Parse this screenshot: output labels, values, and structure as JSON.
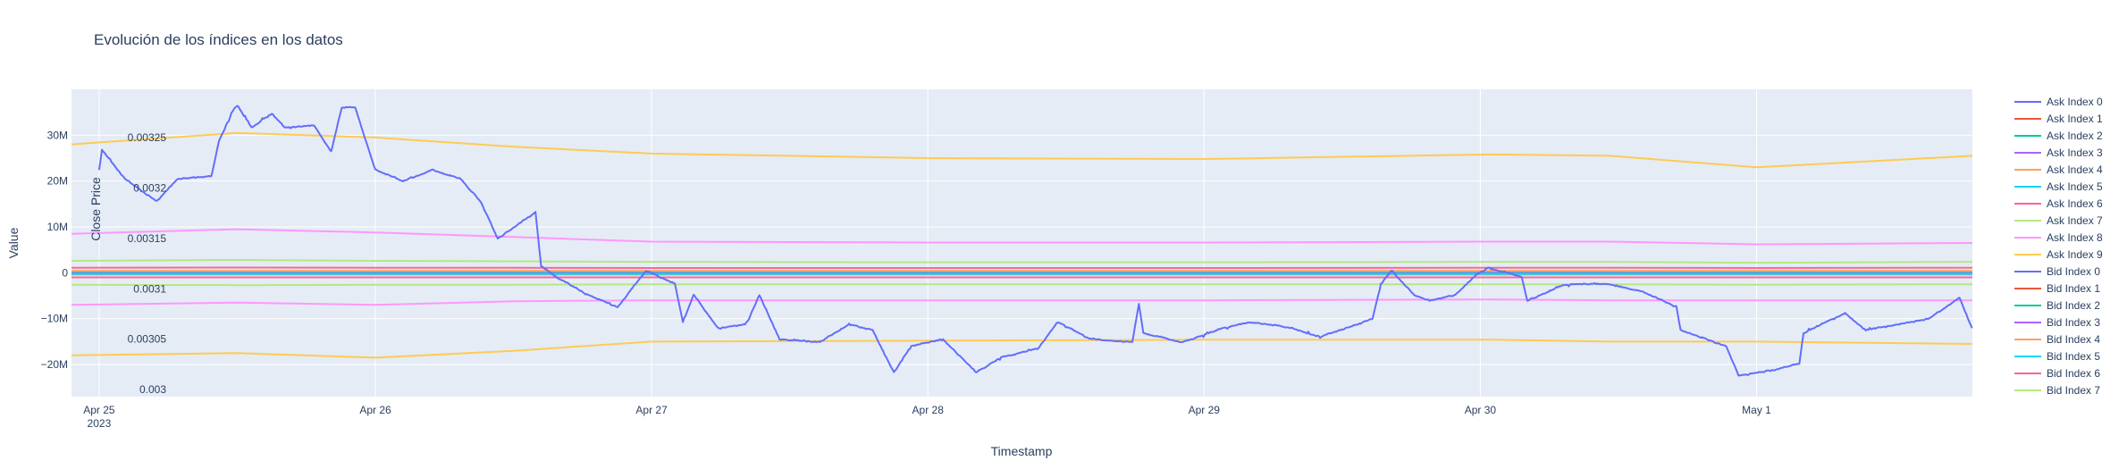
{
  "chart_data": {
    "type": "line",
    "title": "Evolución de los índices en los datos",
    "xlabel": "Timestamp",
    "ylabel": "Value",
    "y2label": "Close Price",
    "grid": true,
    "legend_position": "right",
    "background": "#e5ecf6",
    "xlim": [
      "2023-04-24 21:36",
      "2023-05-01 18:45"
    ],
    "ylim": [
      -27000000,
      40000000
    ],
    "y2lim": [
      0.002993,
      0.003298
    ],
    "x_ticks": [
      {
        "value": "2023-04-25 00:00",
        "label": "Apr 25",
        "sublabel": "2023"
      },
      {
        "value": "2023-04-26 00:00",
        "label": "Apr 26"
      },
      {
        "value": "2023-04-27 00:00",
        "label": "Apr 27"
      },
      {
        "value": "2023-04-28 00:00",
        "label": "Apr 28"
      },
      {
        "value": "2023-04-29 00:00",
        "label": "Apr 29"
      },
      {
        "value": "2023-04-30 00:00",
        "label": "Apr 30"
      },
      {
        "value": "2023-05-01 00:00",
        "label": "May 1"
      }
    ],
    "y_ticks": [
      {
        "value": 30000000,
        "label": "30M"
      },
      {
        "value": 20000000,
        "label": "20M"
      },
      {
        "value": 10000000,
        "label": "10M"
      },
      {
        "value": 0,
        "label": "0"
      },
      {
        "value": -10000000,
        "label": "−10M"
      },
      {
        "value": -20000000,
        "label": "−20M"
      }
    ],
    "y2_ticks": [
      {
        "value": 0.00325,
        "label": "0.00325"
      },
      {
        "value": 0.0032,
        "label": "0.0032"
      },
      {
        "value": 0.00315,
        "label": "0.00315"
      },
      {
        "value": 0.0031,
        "label": "0.0031"
      },
      {
        "value": 0.00305,
        "label": "0.00305"
      },
      {
        "value": 0.003,
        "label": "0.003"
      }
    ],
    "index_x": [
      "2023-04-24 21:36",
      "2023-04-25 12:00",
      "2023-04-26 00:00",
      "2023-04-26 12:00",
      "2023-04-27 00:00",
      "2023-04-28 00:00",
      "2023-04-29 00:00",
      "2023-04-30 01:00",
      "2023-04-30 11:15",
      "2023-05-01 00:00",
      "2023-05-01 18:45"
    ],
    "series": [
      {
        "name": "Ask Index 0",
        "color": "#636efa",
        "values": [
          100000,
          100000,
          100000,
          100000,
          100000,
          100000,
          100000,
          100000,
          100000,
          100000,
          100000
        ]
      },
      {
        "name": "Ask Index 1",
        "color": "#EF553B",
        "values": [
          300000,
          300000,
          300000,
          300000,
          300000,
          300000,
          300000,
          300000,
          300000,
          300000,
          300000
        ]
      },
      {
        "name": "Ask Index 2",
        "color": "#00cc96",
        "values": [
          150000,
          150000,
          150000,
          150000,
          150000,
          150000,
          150000,
          150000,
          150000,
          150000,
          150000
        ]
      },
      {
        "name": "Ask Index 3",
        "color": "#ab63fa",
        "values": [
          200000,
          200000,
          200000,
          200000,
          200000,
          200000,
          200000,
          200000,
          200000,
          200000,
          200000
        ]
      },
      {
        "name": "Ask Index 4",
        "color": "#FFA15A",
        "values": [
          400000,
          400000,
          400000,
          400000,
          400000,
          400000,
          400000,
          400000,
          400000,
          400000,
          400000
        ]
      },
      {
        "name": "Ask Index 5",
        "color": "#19d3f3",
        "values": [
          0,
          0,
          0,
          0,
          0,
          0,
          0,
          0,
          0,
          0,
          0
        ]
      },
      {
        "name": "Ask Index 6",
        "color": "#FF6692",
        "values": [
          1100000,
          1150000,
          1100000,
          1100000,
          1050000,
          1050000,
          1050000,
          1100000,
          1100000,
          1050000,
          1100000
        ]
      },
      {
        "name": "Ask Index 7",
        "color": "#B6E880",
        "values": [
          2600000,
          2800000,
          2600000,
          2500000,
          2400000,
          2300000,
          2300000,
          2400000,
          2400000,
          2200000,
          2400000
        ]
      },
      {
        "name": "Ask Index 8",
        "color": "#FF97FF",
        "values": [
          8500000,
          9500000,
          8800000,
          7800000,
          6800000,
          6600000,
          6600000,
          6800000,
          6800000,
          6200000,
          6500000
        ]
      },
      {
        "name": "Ask Index 9",
        "color": "#FECB52",
        "values": [
          28000000,
          30500000,
          29500000,
          27500000,
          26000000,
          25000000,
          24800000,
          25800000,
          25500000,
          23000000,
          25500000
        ]
      },
      {
        "name": "Bid Index 0",
        "color": "#636efa",
        "values": [
          -100000,
          -100000,
          -100000,
          -100000,
          -100000,
          -100000,
          -100000,
          -100000,
          -100000,
          -100000,
          -100000
        ]
      },
      {
        "name": "Bid Index 1",
        "color": "#EF553B",
        "values": [
          -300000,
          -300000,
          -300000,
          -300000,
          -300000,
          -300000,
          -300000,
          -300000,
          -300000,
          -300000,
          -300000
        ]
      },
      {
        "name": "Bid Index 2",
        "color": "#00cc96",
        "values": [
          -150000,
          -150000,
          -150000,
          -150000,
          -150000,
          -150000,
          -150000,
          -150000,
          -150000,
          -150000,
          -150000
        ]
      },
      {
        "name": "Bid Index 3",
        "color": "#ab63fa",
        "values": [
          -200000,
          -200000,
          -200000,
          -200000,
          -200000,
          -200000,
          -200000,
          -200000,
          -200000,
          -200000,
          -200000
        ]
      },
      {
        "name": "Bid Index 4",
        "color": "#FFA15A",
        "values": [
          -400000,
          -400000,
          -400000,
          -400000,
          -400000,
          -400000,
          -400000,
          -400000,
          -400000,
          -400000,
          -400000
        ]
      },
      {
        "name": "Bid Index 5",
        "color": "#19d3f3",
        "values": [
          -250000,
          -250000,
          -250000,
          -250000,
          -250000,
          -250000,
          -250000,
          -250000,
          -250000,
          -250000,
          -250000
        ]
      },
      {
        "name": "Bid Index 6",
        "color": "#FF6692",
        "values": [
          -1000000,
          -1000000,
          -1000000,
          -1000000,
          -1000000,
          -1000000,
          -1000000,
          -1000000,
          -1000000,
          -1000000,
          -1000000
        ]
      },
      {
        "name": "Bid Index 7",
        "color": "#B6E880",
        "values": [
          -2600000,
          -2700000,
          -2600000,
          -2600000,
          -2500000,
          -2500000,
          -2500000,
          -2500000,
          -2500000,
          -2600000,
          -2500000
        ]
      },
      {
        "color": "#FF97FF",
        "values": [
          -7000000,
          -6500000,
          -7000000,
          -6200000,
          -6000000,
          -6000000,
          -6000000,
          -5800000,
          -6000000,
          -6000000,
          -6000000
        ]
      },
      {
        "color": "#FECB52",
        "values": [
          -18000000,
          -17500000,
          -18500000,
          -17000000,
          -15000000,
          -14800000,
          -14600000,
          -14600000,
          -15000000,
          -15000000,
          -15500000
        ]
      }
    ],
    "close_price": {
      "color": "#636efa",
      "axis": "y2",
      "x": [
        "2023-04-25 00:00",
        "2023-04-25 00:15",
        "2023-04-25 02:15",
        "2023-04-25 05:00",
        "2023-04-25 06:50",
        "2023-04-25 09:45",
        "2023-04-25 10:25",
        "2023-04-25 11:30",
        "2023-04-25 12:00",
        "2023-04-25 13:15",
        "2023-04-25 15:00",
        "2023-04-25 16:10",
        "2023-04-25 18:40",
        "2023-04-25 20:10",
        "2023-04-25 21:05",
        "2023-04-25 22:15",
        "2023-04-26 00:00",
        "2023-04-26 02:24",
        "2023-04-26 05:00",
        "2023-04-26 07:26",
        "2023-04-26 09:14",
        "2023-04-26 10:38",
        "2023-04-26 13:55",
        "2023-04-26 14:24",
        "2023-04-26 15:42",
        "2023-04-26 18:29",
        "2023-04-26 21:03",
        "2023-04-26 23:31",
        "2023-04-27 02:01",
        "2023-04-27 02:43",
        "2023-04-27 03:39",
        "2023-04-27 05:46",
        "2023-04-27 08:14",
        "2023-04-27 09:22",
        "2023-04-27 11:07",
        "2023-04-27 14:38",
        "2023-04-27 17:10",
        "2023-04-27 19:12",
        "2023-04-27 21:03",
        "2023-04-27 22:34",
        "2023-04-28 01:19",
        "2023-04-28 04:12",
        "2023-04-28 06:22",
        "2023-04-28 09:36",
        "2023-04-28 11:17",
        "2023-04-28 14:10",
        "2023-04-28 17:46",
        "2023-04-28 18:20",
        "2023-04-28 18:43",
        "2023-04-28 22:05",
        "2023-04-29 01:41",
        "2023-04-29 04:05",
        "2023-04-29 07:41",
        "2023-04-29 10:05",
        "2023-04-29 14:38",
        "2023-04-29 15:22",
        "2023-04-29 16:19",
        "2023-04-29 18:14",
        "2023-04-29 19:41",
        "2023-04-29 21:50",
        "2023-04-29 23:38",
        "2023-04-30 00:43",
        "2023-04-30 03:36",
        "2023-04-30 04:05",
        "2023-04-30 06:58",
        "2023-04-30 08:53",
        "2023-04-30 11:02",
        "2023-04-30 14:10",
        "2023-04-30 17:02",
        "2023-04-30 17:24",
        "2023-04-30 21:22",
        "2023-04-30 22:26",
        "2023-05-01 01:41",
        "2023-05-01 03:43",
        "2023-05-01 04:05",
        "2023-05-01 07:41",
        "2023-05-01 09:29",
        "2023-05-01 14:53",
        "2023-05-01 17:38",
        "2023-05-01 18:43"
      ],
      "values": [
        0.003218,
        0.003238,
        0.003209,
        0.003187,
        0.003209,
        0.003212,
        0.003247,
        0.003274,
        0.003282,
        0.00326,
        0.003274,
        0.00326,
        0.003262,
        0.003236,
        0.00328,
        0.00328,
        0.003218,
        0.003207,
        0.003218,
        0.003209,
        0.003185,
        0.00315,
        0.003176,
        0.003123,
        0.003112,
        0.003094,
        0.003082,
        0.003118,
        0.003105,
        0.003067,
        0.003094,
        0.003061,
        0.003065,
        0.003094,
        0.00305,
        0.003047,
        0.003065,
        0.003059,
        0.003017,
        0.003043,
        0.00305,
        0.003017,
        0.003032,
        0.003041,
        0.003067,
        0.00305,
        0.003047,
        0.003085,
        0.003056,
        0.003047,
        0.003061,
        0.003067,
        0.003061,
        0.003052,
        0.00307,
        0.003105,
        0.003118,
        0.003094,
        0.003088,
        0.003094,
        0.003114,
        0.003121,
        0.003112,
        0.003088,
        0.003103,
        0.003105,
        0.003105,
        0.003097,
        0.003082,
        0.003059,
        0.003043,
        0.003014,
        0.00302,
        0.003026,
        0.003056,
        0.003076,
        0.003059,
        0.00307,
        0.003091,
        0.003061
      ]
    }
  }
}
